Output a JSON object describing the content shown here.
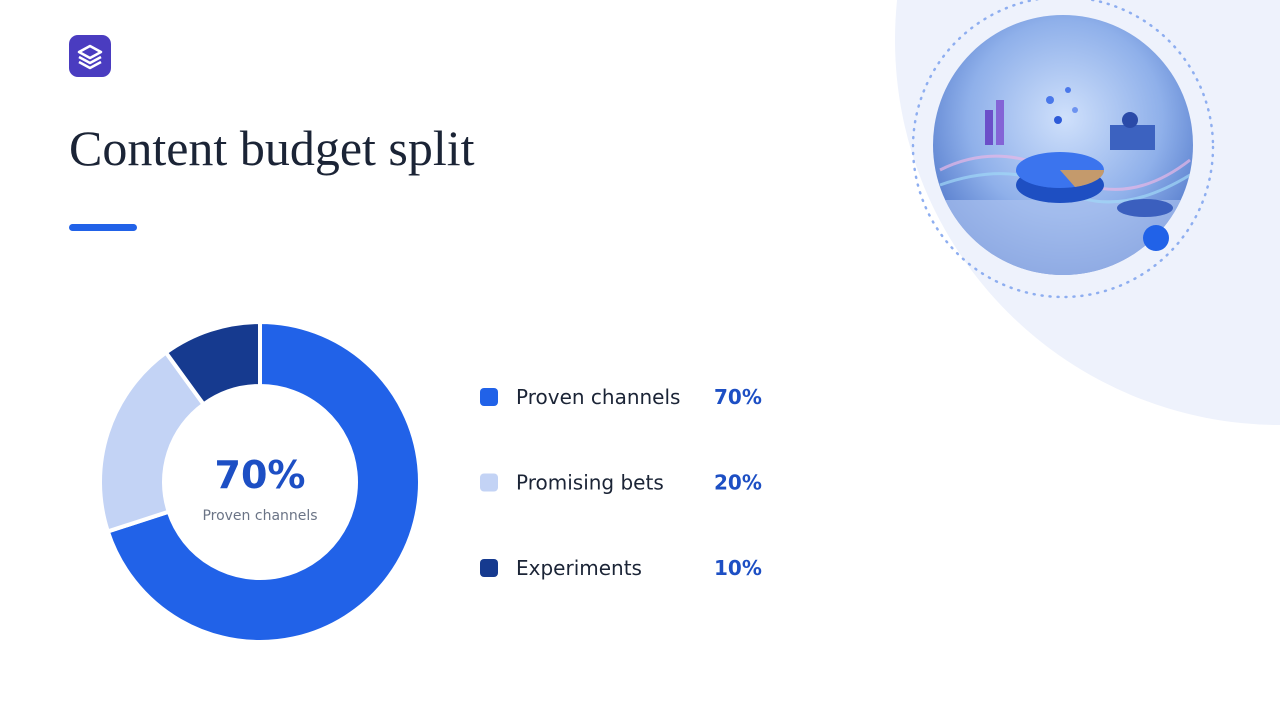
{
  "chart_data": {
    "type": "donut",
    "title": "Content budget split",
    "categories": [
      "Proven channels",
      "Promising bets",
      "Experiments"
    ],
    "values": [
      70,
      20,
      10
    ],
    "value_labels": [
      "70%",
      "20%",
      "10%"
    ],
    "colors": [
      "#2162e8",
      "#c3d3f5",
      "#163a8f"
    ]
  }
}
